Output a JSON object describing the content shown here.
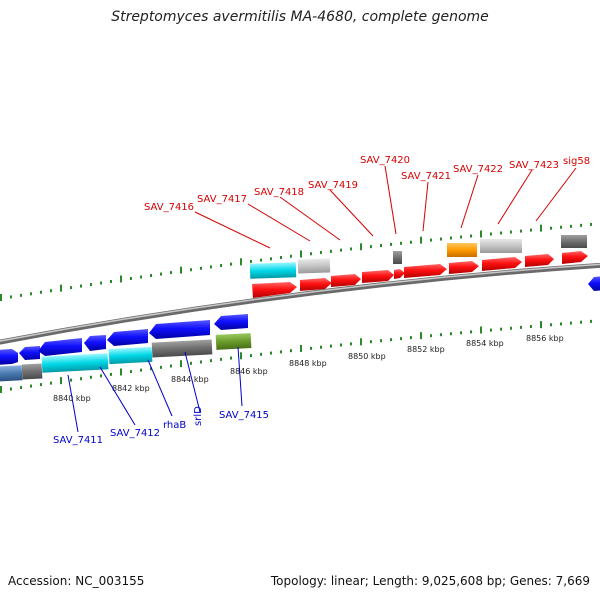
{
  "title": "Streptomyces avermitilis MA-4680, complete genome",
  "footer": {
    "accession": "Accession: NC_003155",
    "summary": "Topology: linear; Length: 9,025,608 bp; Genes: 7,669"
  },
  "colors": {
    "forward_label": "#d60000",
    "reverse_label": "#0000c8",
    "backbone": "#8a8a8a",
    "tick_marks": "#2a8a2a"
  },
  "scale_labels": [
    "8840 kbp",
    "8842 kbp",
    "8844 kbp",
    "8846 kbp",
    "8848 kbp",
    "8850 kbp",
    "8852 kbp",
    "8854 kbp",
    "8856 kbp"
  ],
  "forward_gene_labels": [
    "SAV_7416",
    "SAV_7417",
    "SAV_7418",
    "SAV_7419",
    "SAV_7420",
    "SAV_7421",
    "SAV_7422",
    "SAV_7423",
    "sig58"
  ],
  "reverse_gene_labels": [
    "SAV_7411",
    "SAV_7412",
    "rhaB",
    "srlD",
    "SAV_7415"
  ],
  "feature_colors": {
    "cds": "red/blue arrows",
    "other": [
      "#00c8d0",
      "#c0c0c0",
      "#ff9a00",
      "#707070",
      "#6a9a2a",
      "#4a7ab0"
    ]
  }
}
